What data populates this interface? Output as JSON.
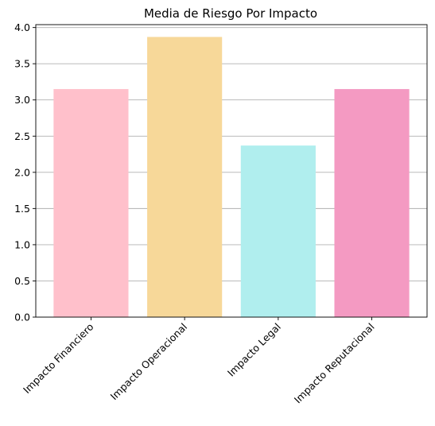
{
  "chart_data": {
    "type": "bar",
    "title": "Media de Riesgo Por Impacto",
    "xlabel": "",
    "ylabel": "",
    "categories": [
      "Impacto Financiero",
      "Impacto Operacional",
      "Impacto Legal",
      "Impacto Reputacional"
    ],
    "values": [
      3.15,
      3.87,
      2.37,
      3.15
    ],
    "colors": [
      "#ffc0cb",
      "#f7d899",
      "#b0eeee",
      "#f49ac2"
    ],
    "ylim": [
      0,
      4.04
    ],
    "yticks": [
      0.0,
      0.5,
      1.0,
      1.5,
      2.0,
      2.5,
      3.0,
      3.5,
      4.0
    ],
    "ytick_labels": [
      "0.0",
      "0.5",
      "1.0",
      "1.5",
      "2.0",
      "2.5",
      "3.0",
      "3.5",
      "4.0"
    ],
    "grid": "y",
    "xtick_rotation": 45
  }
}
